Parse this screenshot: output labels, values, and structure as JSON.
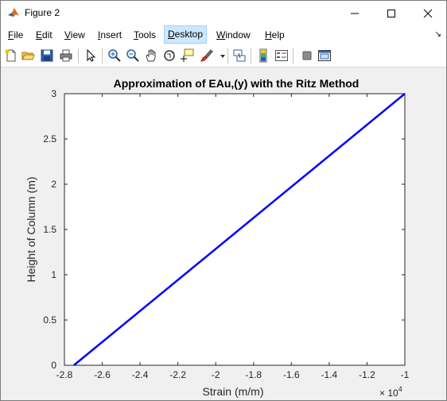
{
  "window": {
    "title": "Figure 2"
  },
  "menu": {
    "items": [
      {
        "pre": "",
        "acc": "F",
        "rest": "ile"
      },
      {
        "pre": "",
        "acc": "E",
        "rest": "dit"
      },
      {
        "pre": "",
        "acc": "V",
        "rest": "iew"
      },
      {
        "pre": "",
        "acc": "I",
        "rest": "nsert"
      },
      {
        "pre": "",
        "acc": "T",
        "rest": "ools"
      },
      {
        "pre": "",
        "acc": "D",
        "rest": "esktop"
      },
      {
        "pre": "",
        "acc": "W",
        "rest": "indow"
      },
      {
        "pre": "",
        "acc": "H",
        "rest": "elp"
      }
    ],
    "active_index": 5
  },
  "toolbar": {
    "icons": [
      "new-figure-icon",
      "open-file-icon",
      "save-icon",
      "print-icon",
      "pointer-icon",
      "zoom-in-icon",
      "zoom-out-icon",
      "pan-icon",
      "rotate-3d-icon",
      "data-cursor-icon",
      "brush-icon",
      "brush-dropdown-icon",
      "link-plot-icon",
      "colorbar-icon",
      "legend-icon",
      "hide-plot-tools-icon",
      "show-plot-tools-icon"
    ]
  },
  "chart_data": {
    "type": "line",
    "title": "Approximation of EAu,(y) with the Ritz Method",
    "xlabel": "Strain (m/m)",
    "ylabel": "Height of Column (m)",
    "x_exponent_label": "× 10",
    "x_exponent_power": "4",
    "xlim": [
      -2.8,
      -1.0
    ],
    "ylim": [
      0,
      3
    ],
    "x_ticks": [
      "-2.8",
      "-2.6",
      "-2.4",
      "-2.2",
      "-2",
      "-1.8",
      "-1.6",
      "-1.4",
      "-1.2",
      "-1"
    ],
    "y_ticks": [
      "0",
      "0.5",
      "1",
      "1.5",
      "2",
      "2.5",
      "3"
    ],
    "grid": false,
    "series": [
      {
        "color": "#0000ff",
        "x": [
          -2.75,
          -1.0
        ],
        "y": [
          0,
          3
        ]
      }
    ]
  }
}
